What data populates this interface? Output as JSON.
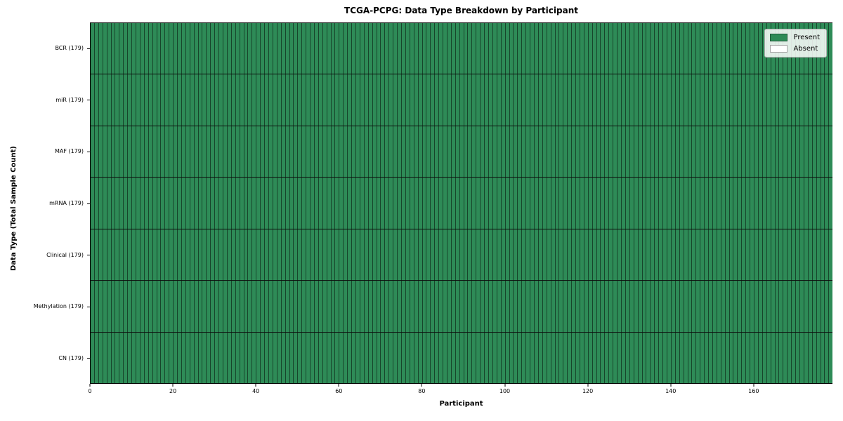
{
  "chart_data": {
    "type": "heatmap",
    "title": "TCGA-PCPG: Data Type Breakdown by Participant",
    "xlabel": "Participant",
    "ylabel": "Data Type (Total Sample Count)",
    "n_participants": 179,
    "xlim": [
      0,
      179
    ],
    "x_ticks": [
      0,
      20,
      40,
      60,
      80,
      100,
      120,
      140,
      160
    ],
    "grid": false,
    "legend_position": "upper right",
    "rows": [
      {
        "label": "BCR (179)",
        "data_type": "BCR",
        "total_samples": 179,
        "present_count": 179,
        "absent_count": 0
      },
      {
        "label": "miR (179)",
        "data_type": "miR",
        "total_samples": 179,
        "present_count": 179,
        "absent_count": 0
      },
      {
        "label": "MAF (179)",
        "data_type": "MAF",
        "total_samples": 179,
        "present_count": 179,
        "absent_count": 0
      },
      {
        "label": "mRNA (179)",
        "data_type": "mRNA",
        "total_samples": 179,
        "present_count": 179,
        "absent_count": 0
      },
      {
        "label": "Clinical (179)",
        "data_type": "Clinical",
        "total_samples": 179,
        "present_count": 179,
        "absent_count": 0
      },
      {
        "label": "Methylation (179)",
        "data_type": "Methylation",
        "total_samples": 179,
        "present_count": 179,
        "absent_count": 0
      },
      {
        "label": "CN (179)",
        "data_type": "CN",
        "total_samples": 179,
        "present_count": 179,
        "absent_count": 0
      }
    ],
    "legend": [
      {
        "label": "Present",
        "color": "#2e8b57"
      },
      {
        "label": "Absent",
        "color": "#ffffff"
      }
    ],
    "colors": {
      "present": "#2e8b57",
      "absent": "#ffffff",
      "cell_edge": "rgba(0,0,0,0.5)",
      "row_separator": "#0d0d0d",
      "axes_spine": "#000000"
    }
  }
}
